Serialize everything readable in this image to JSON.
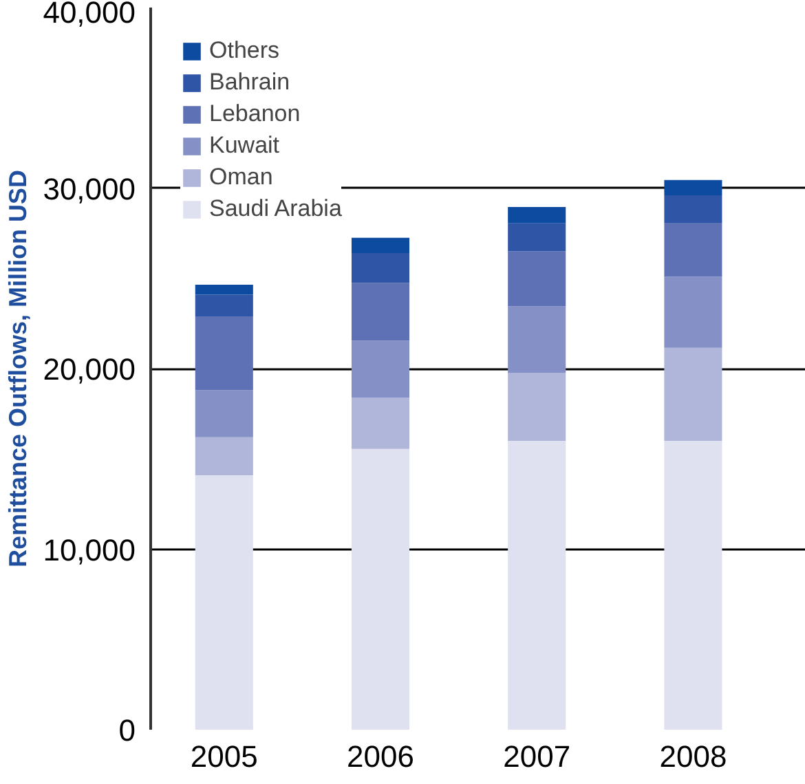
{
  "chart_data": {
    "type": "bar",
    "stacked": true,
    "ylabel": "Remittance Outflows, Million USD",
    "categories": [
      "2005",
      "2006",
      "2007",
      "2008"
    ],
    "series": [
      {
        "name": "Saudi Arabia",
        "color": "#dfe1f0",
        "values": [
          14100,
          15550,
          16000,
          16000
        ]
      },
      {
        "name": "Oman",
        "color": "#b0b5da",
        "values": [
          2100,
          2850,
          3750,
          5150
        ]
      },
      {
        "name": "Kuwait",
        "color": "#8490c6",
        "values": [
          2600,
          3150,
          3700,
          3950
        ]
      },
      {
        "name": "Lebanon",
        "color": "#5e71b5",
        "values": [
          4100,
          3200,
          3050,
          2950
        ]
      },
      {
        "name": "Bahrain",
        "color": "#2f55a7",
        "values": [
          1200,
          1650,
          1550,
          1550
        ]
      },
      {
        "name": "Others",
        "color": "#0d4ba0",
        "values": [
          550,
          850,
          900,
          850
        ]
      }
    ],
    "ylim": [
      0,
      40000
    ],
    "yticks": [
      0,
      {
        "value": 10000,
        "label": "10,000"
      },
      {
        "value": 20000,
        "label": "20,000"
      },
      {
        "value": 30000,
        "label": "30,000"
      },
      {
        "value": 40000,
        "label": "40,000"
      }
    ],
    "grid": "y",
    "legend": "top"
  }
}
